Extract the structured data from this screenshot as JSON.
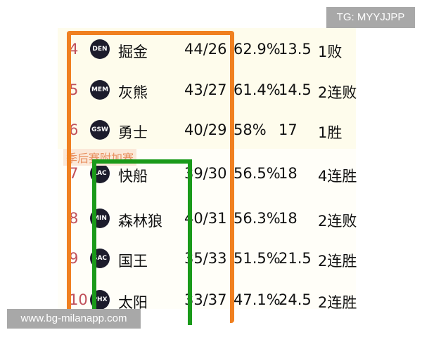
{
  "play_in_label": "季后赛附加赛",
  "rows": [
    {
      "rank": "4",
      "logo": "DEN",
      "team": "掘金",
      "record": "44/26",
      "pct": "62.9%",
      "gb": "13.5",
      "streak": "1败"
    },
    {
      "rank": "5",
      "logo": "MEM",
      "team": "灰熊",
      "record": "43/27",
      "pct": "61.4%",
      "gb": "14.5",
      "streak": "2连败"
    },
    {
      "rank": "6",
      "logo": "GSW",
      "team": "勇士",
      "record": "40/29",
      "pct": "58%",
      "gb": "17",
      "streak": "1胜"
    },
    {
      "rank": "7",
      "logo": "LAC",
      "team": "快船",
      "record": "39/30",
      "pct": "56.5%",
      "gb": "18",
      "streak": "4连胜"
    },
    {
      "rank": "8",
      "logo": "MIN",
      "team": "森林狼",
      "record": "40/31",
      "pct": "56.3%",
      "gb": "18",
      "streak": "2连败"
    },
    {
      "rank": "9",
      "logo": "SAC",
      "team": "国王",
      "record": "35/33",
      "pct": "51.5%",
      "gb": "21.5",
      "streak": "2连胜"
    },
    {
      "rank": "10",
      "logo": "PHX",
      "team": "太阳",
      "record": "33/37",
      "pct": "47.1%",
      "gb": "24.5",
      "streak": "2连胜"
    }
  ],
  "watermarks": {
    "tg": "TG: MYYJJPP",
    "site": "www.bg-milanapp.com"
  },
  "colors": {
    "orange_box": "#f08020",
    "green_box": "#1a9a1a",
    "rank": "#c0505a"
  }
}
